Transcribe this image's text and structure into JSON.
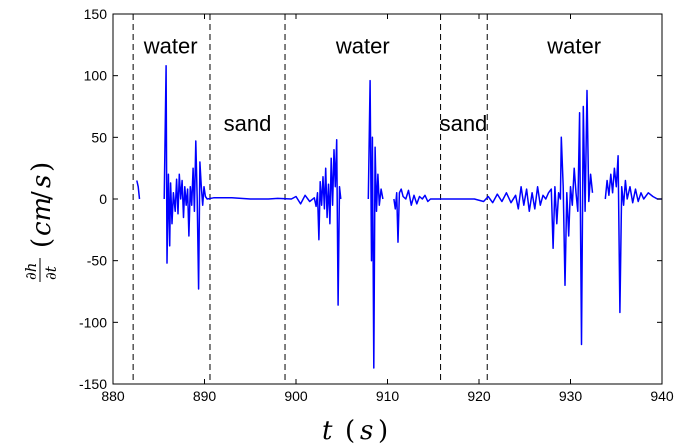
{
  "chart_data": {
    "type": "line",
    "xlabel": "t (s)",
    "ylabel": "∂h/∂t (cm/s)",
    "xlim": [
      880,
      940
    ],
    "ylim": [
      -150,
      150
    ],
    "x_ticks": [
      880,
      890,
      900,
      910,
      920,
      930,
      940
    ],
    "y_ticks": [
      -150,
      -100,
      -50,
      0,
      50,
      100,
      150
    ],
    "grid": false,
    "line_color": "#0000ff",
    "boundaries": [
      882.2,
      890.6,
      898.8,
      915.8,
      920.9
    ],
    "regions": [
      {
        "label": "water",
        "x": 886.3
      },
      {
        "label": "sand",
        "x": 894.7
      },
      {
        "label": "water",
        "x": 907.3
      },
      {
        "label": "sand",
        "x": 918.3
      },
      {
        "label": "water",
        "x": 930.4
      }
    ],
    "series": [
      {
        "segments": [
          [
            [
              882.6,
              15
            ],
            [
              882.75,
              10
            ],
            [
              882.9,
              0
            ]
          ],
          [
            [
              885.6,
              0
            ],
            [
              885.8,
              108
            ],
            [
              885.9,
              -52
            ],
            [
              886.05,
              20
            ],
            [
              886.2,
              -38
            ],
            [
              886.3,
              13
            ],
            [
              886.45,
              -20
            ],
            [
              886.6,
              5
            ],
            [
              886.8,
              -10
            ],
            [
              886.95,
              16
            ],
            [
              887.1,
              -12
            ],
            [
              887.25,
              20
            ],
            [
              887.4,
              0
            ],
            [
              887.55,
              15
            ],
            [
              887.7,
              -15
            ],
            [
              887.85,
              10
            ],
            [
              888.0,
              -5
            ],
            [
              888.15,
              8
            ],
            [
              888.3,
              -30
            ],
            [
              888.45,
              10
            ],
            [
              888.6,
              -5
            ],
            [
              888.75,
              25
            ],
            [
              888.9,
              -10
            ],
            [
              889.05,
              47
            ],
            [
              889.2,
              0
            ],
            [
              889.35,
              -73
            ],
            [
              889.5,
              30
            ],
            [
              889.65,
              10
            ],
            [
              889.8,
              -5
            ],
            [
              889.95,
              10
            ],
            [
              890.1,
              2
            ],
            [
              890.3,
              0
            ],
            [
              891,
              1
            ],
            [
              893,
              1
            ],
            [
              895,
              0
            ],
            [
              897,
              0
            ],
            [
              898,
              0.5
            ],
            [
              899.5,
              0
            ],
            [
              900,
              2
            ],
            [
              900.5,
              -4
            ],
            [
              901,
              3
            ],
            [
              901.5,
              -2
            ],
            [
              902,
              1
            ],
            [
              902.2,
              -6
            ],
            [
              902.35,
              5
            ],
            [
              902.5,
              -33
            ],
            [
              902.65,
              14
            ],
            [
              902.8,
              -5
            ],
            [
              902.95,
              18
            ],
            [
              903.1,
              -8
            ],
            [
              903.25,
              25
            ],
            [
              903.4,
              -15
            ],
            [
              903.55,
              12
            ],
            [
              903.7,
              -20
            ],
            [
              903.85,
              33
            ],
            [
              904.0,
              -5
            ],
            [
              904.15,
              40
            ],
            [
              904.3,
              10
            ],
            [
              904.45,
              48
            ],
            [
              904.6,
              -86
            ],
            [
              904.75,
              10
            ],
            [
              904.9,
              0
            ]
          ],
          [
            [
              907.9,
              0
            ],
            [
              908.1,
              96
            ],
            [
              908.25,
              -50
            ],
            [
              908.35,
              50
            ],
            [
              908.5,
              -137
            ],
            [
              908.65,
              42
            ],
            [
              908.8,
              -10
            ],
            [
              908.95,
              20
            ],
            [
              909.1,
              -5
            ],
            [
              909.3,
              8
            ],
            [
              909.5,
              0
            ]
          ],
          [
            [
              910.7,
              0
            ],
            [
              910.85,
              -8
            ],
            [
              911.0,
              5
            ],
            [
              911.15,
              -35
            ],
            [
              911.3,
              5
            ],
            [
              911.5,
              8
            ],
            [
              911.7,
              2
            ],
            [
              912,
              0
            ],
            [
              912.3,
              7
            ],
            [
              912.6,
              -5
            ],
            [
              912.9,
              3
            ],
            [
              913.2,
              -4
            ],
            [
              913.5,
              2
            ],
            [
              913.8,
              0
            ],
            [
              914.1,
              3
            ],
            [
              914.4,
              -2
            ],
            [
              914.7,
              0
            ],
            [
              915.5,
              0
            ],
            [
              916.5,
              0
            ],
            [
              918,
              0
            ],
            [
              919.5,
              0
            ],
            [
              920.5,
              -2
            ],
            [
              921,
              2
            ],
            [
              921.5,
              -3
            ],
            [
              922,
              4
            ],
            [
              922.5,
              -2
            ],
            [
              923,
              5
            ],
            [
              923.5,
              -3
            ],
            [
              924,
              3
            ],
            [
              924.3,
              -8
            ],
            [
              924.6,
              10
            ],
            [
              924.9,
              -5
            ],
            [
              925.2,
              8
            ],
            [
              925.5,
              -10
            ],
            [
              925.8,
              5
            ],
            [
              926.1,
              -8
            ],
            [
              926.4,
              10
            ],
            [
              926.7,
              -5
            ],
            [
              927,
              3
            ],
            [
              927.3,
              0
            ],
            [
              927.6,
              5
            ],
            [
              927.9,
              8
            ],
            [
              928.1,
              -40
            ],
            [
              928.3,
              10
            ],
            [
              928.5,
              -20
            ],
            [
              928.7,
              5
            ],
            [
              928.9,
              0
            ],
            [
              929.0,
              50
            ],
            [
              929.2,
              10
            ],
            [
              929.4,
              -70
            ],
            [
              929.6,
              5
            ],
            [
              929.8,
              -30
            ],
            [
              930.0,
              10
            ],
            [
              930.2,
              -5
            ],
            [
              930.4,
              25
            ],
            [
              930.6,
              5
            ],
            [
              930.8,
              -10
            ],
            [
              931.0,
              70
            ],
            [
              931.2,
              -118
            ],
            [
              931.4,
              75
            ],
            [
              931.6,
              -10
            ],
            [
              931.8,
              88
            ],
            [
              932.0,
              -2
            ],
            [
              932.2,
              20
            ],
            [
              932.4,
              5
            ]
          ],
          [
            [
              933.8,
              0
            ],
            [
              934.0,
              15
            ],
            [
              934.2,
              3
            ],
            [
              934.4,
              20
            ],
            [
              934.6,
              5
            ],
            [
              934.8,
              25
            ],
            [
              935.0,
              10
            ],
            [
              935.2,
              35
            ],
            [
              935.4,
              -92
            ],
            [
              935.6,
              10
            ],
            [
              935.8,
              -5
            ],
            [
              936.0,
              15
            ],
            [
              936.2,
              0
            ],
            [
              936.5,
              10
            ],
            [
              936.8,
              -3
            ],
            [
              937.1,
              8
            ],
            [
              937.4,
              -2
            ],
            [
              937.7,
              5
            ],
            [
              938.0,
              0
            ],
            [
              938.5,
              5
            ],
            [
              939,
              2
            ],
            [
              939.5,
              0
            ],
            [
              940,
              0
            ]
          ]
        ]
      }
    ]
  }
}
